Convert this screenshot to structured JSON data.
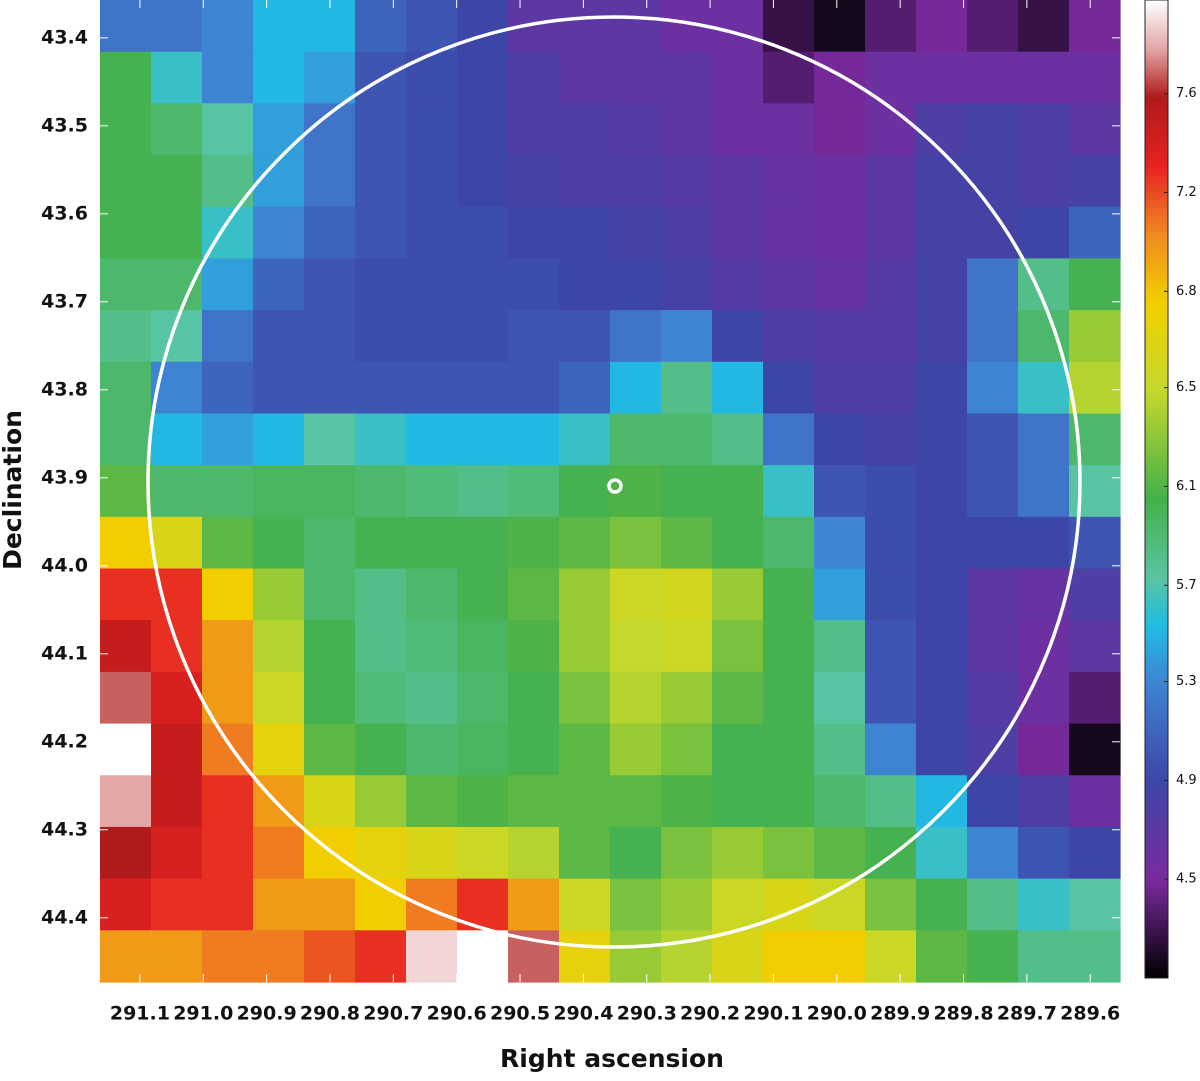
{
  "chart_data": {
    "type": "heatmap",
    "x_label": "Right ascension",
    "y_label": "Declination",
    "xlim": [
      291.163,
      289.553
    ],
    "ylim": [
      43.357,
      44.473
    ],
    "xticks": [
      291.1,
      {
        "value": 291.0,
        "label": "291.0"
      },
      290.9,
      290.8,
      290.7,
      290.6,
      290.5,
      290.4,
      290.3,
      290.2,
      290.1,
      {
        "value": 290.0,
        "label": "290.0"
      },
      289.9,
      289.8,
      289.7,
      289.6
    ],
    "yticks": [
      43.4,
      43.5,
      43.6,
      43.7,
      43.8,
      43.9,
      {
        "value": 44.0,
        "label": "44.0"
      },
      44.1,
      44.2,
      44.3,
      44.4
    ],
    "clim": [
      4.13,
      7.99
    ],
    "cticks": [
      {
        "value": 4.52,
        "label": "4.5"
      },
      {
        "value": 4.91,
        "label": "4.9"
      },
      {
        "value": 5.3,
        "label": "5.3"
      },
      {
        "value": 5.68,
        "label": "5.7"
      },
      {
        "value": 6.07,
        "label": "6.1"
      },
      {
        "value": 6.46,
        "label": "6.5"
      },
      {
        "value": 6.84,
        "label": "6.8"
      },
      {
        "value": 7.23,
        "label": "7.2"
      },
      {
        "value": 7.62,
        "label": "7.6"
      }
    ],
    "colorscale": [
      [
        0,
        "#000000"
      ],
      [
        0.1,
        "#7a2a9e"
      ],
      [
        0.2,
        "#3d46a6"
      ],
      [
        0.3,
        "#3f82d2"
      ],
      [
        0.36,
        "#20bde2"
      ],
      [
        0.41,
        "#5bc4a0"
      ],
      [
        0.49,
        "#44b04a"
      ],
      [
        0.6,
        "#c4d82c"
      ],
      [
        0.69,
        "#f2d000"
      ],
      [
        0.76,
        "#f08a20"
      ],
      [
        0.83,
        "#e62222"
      ],
      [
        0.9,
        "#b01a1a"
      ],
      [
        0.95,
        "#e3a6a6"
      ],
      [
        1,
        "#ffffff"
      ]
    ],
    "values": [
      [
        5.2,
        5.2,
        5.3,
        5.5,
        5.5,
        5.1,
        5.0,
        4.9,
        4.7,
        4.7,
        4.7,
        4.6,
        4.6,
        4.3,
        4.2,
        4.4,
        4.5,
        4.4,
        4.3,
        4.5
      ],
      [
        6.0,
        5.6,
        5.3,
        5.5,
        5.4,
        5.0,
        4.95,
        4.9,
        4.8,
        4.7,
        4.7,
        4.7,
        4.6,
        4.4,
        4.5,
        4.6,
        4.6,
        4.6,
        4.6,
        4.6
      ],
      [
        6.0,
        5.9,
        5.7,
        5.4,
        5.2,
        5.0,
        4.95,
        4.9,
        4.8,
        4.8,
        4.75,
        4.7,
        4.6,
        4.6,
        4.5,
        4.6,
        4.8,
        4.85,
        4.8,
        4.7
      ],
      [
        6.0,
        6.0,
        5.8,
        5.4,
        5.2,
        5.0,
        4.95,
        4.9,
        4.85,
        4.8,
        4.8,
        4.75,
        4.7,
        4.65,
        4.6,
        4.7,
        4.85,
        4.85,
        4.8,
        4.85
      ],
      [
        6.0,
        6.0,
        5.6,
        5.3,
        5.1,
        5.0,
        4.95,
        4.95,
        4.9,
        4.9,
        4.85,
        4.8,
        4.7,
        4.65,
        4.6,
        4.7,
        4.85,
        4.85,
        4.9,
        5.1
      ],
      [
        5.9,
        5.9,
        5.4,
        5.1,
        5.0,
        4.95,
        4.95,
        4.95,
        4.95,
        4.9,
        4.9,
        4.85,
        4.75,
        4.7,
        4.65,
        4.75,
        4.85,
        5.2,
        5.8,
        6.0
      ],
      [
        5.8,
        5.7,
        5.2,
        5.0,
        5.0,
        4.95,
        4.95,
        4.95,
        5.0,
        5.0,
        5.2,
        5.3,
        4.9,
        4.8,
        4.75,
        4.75,
        4.85,
        5.2,
        5.9,
        6.3
      ],
      [
        5.9,
        5.3,
        5.1,
        5.0,
        5.0,
        5.0,
        5.0,
        5.0,
        5.0,
        5.1,
        5.5,
        5.8,
        5.5,
        4.9,
        4.8,
        4.8,
        4.9,
        5.3,
        5.6,
        6.4
      ],
      [
        5.9,
        5.5,
        5.4,
        5.5,
        5.7,
        5.6,
        5.5,
        5.5,
        5.5,
        5.6,
        5.9,
        5.9,
        5.8,
        5.2,
        4.9,
        4.85,
        4.9,
        5.0,
        5.2,
        5.9
      ],
      [
        6.1,
        5.9,
        5.9,
        5.95,
        5.95,
        5.9,
        5.85,
        5.8,
        5.85,
        6.0,
        6.05,
        6.0,
        6.0,
        5.6,
        5.0,
        4.95,
        4.9,
        5.0,
        5.2,
        5.7
      ],
      [
        6.8,
        6.6,
        6.1,
        6.0,
        5.9,
        6.0,
        6.0,
        6.0,
        6.05,
        6.1,
        6.2,
        6.1,
        6.0,
        5.9,
        5.3,
        4.95,
        4.9,
        4.9,
        4.9,
        5.0
      ],
      [
        7.3,
        7.3,
        6.8,
        6.3,
        5.9,
        5.8,
        5.9,
        6.0,
        6.1,
        6.3,
        6.5,
        6.55,
        6.3,
        6.0,
        5.4,
        4.95,
        4.9,
        4.7,
        4.65,
        4.8
      ],
      [
        7.5,
        7.3,
        7.0,
        6.4,
        6.0,
        5.8,
        5.85,
        5.95,
        6.05,
        6.3,
        6.45,
        6.5,
        6.2,
        6.0,
        5.8,
        5.0,
        4.9,
        4.7,
        4.6,
        4.7
      ],
      [
        7.7,
        7.4,
        7.0,
        6.5,
        6.0,
        5.85,
        5.8,
        5.9,
        6.0,
        6.2,
        6.4,
        6.3,
        6.1,
        6.0,
        5.7,
        5.0,
        4.9,
        4.75,
        4.6,
        4.4
      ],
      [
        8.0,
        7.5,
        7.1,
        6.7,
        6.1,
        6.0,
        5.9,
        5.95,
        6.0,
        6.1,
        6.3,
        6.2,
        6.0,
        6.0,
        5.8,
        5.3,
        4.9,
        4.8,
        4.5,
        4.2
      ],
      [
        7.8,
        7.5,
        7.3,
        7.0,
        6.6,
        6.3,
        6.1,
        6.05,
        6.1,
        6.1,
        6.1,
        6.05,
        6.0,
        6.0,
        5.9,
        5.8,
        5.5,
        4.9,
        4.8,
        4.6
      ],
      [
        7.6,
        7.4,
        7.3,
        7.1,
        6.8,
        6.7,
        6.6,
        6.5,
        6.4,
        6.1,
        6.0,
        6.2,
        6.3,
        6.2,
        6.1,
        6.0,
        5.6,
        5.3,
        5.0,
        4.9
      ],
      [
        7.4,
        7.3,
        7.3,
        7.0,
        7.0,
        6.8,
        7.1,
        7.3,
        7.0,
        6.5,
        6.2,
        6.3,
        6.5,
        6.6,
        6.5,
        6.2,
        6.0,
        5.8,
        5.6,
        5.7
      ],
      [
        7.0,
        7.0,
        7.1,
        7.1,
        7.2,
        7.3,
        7.9,
        8.0,
        7.7,
        6.7,
        6.3,
        6.4,
        6.6,
        6.8,
        6.8,
        6.5,
        6.1,
        6.0,
        5.8,
        5.8
      ]
    ]
  }
}
